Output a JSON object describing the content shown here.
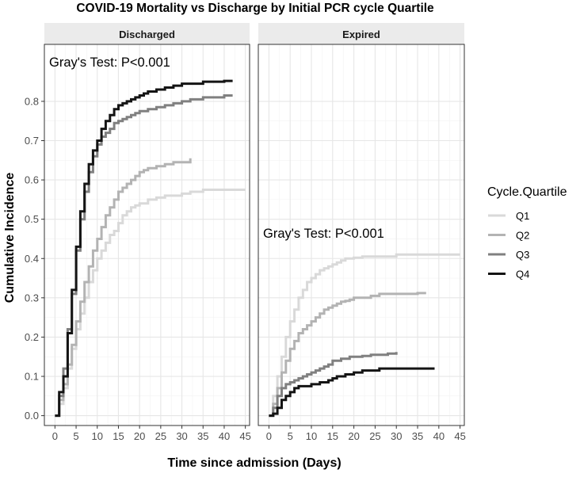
{
  "chart_data": {
    "type": "line",
    "subtype": "step",
    "title": "COVID-19 Mortality vs Discharge by Initial PCR cycle Quartile",
    "xlabel": "Time since admission (Days)",
    "ylabel": "Cumulative Incidence",
    "xlim": [
      -2.5,
      46
    ],
    "ylim": [
      -0.025,
      0.945
    ],
    "x_ticks": [
      0,
      5,
      10,
      15,
      20,
      25,
      30,
      35,
      40,
      45
    ],
    "y_ticks": [
      0.0,
      0.1,
      0.2,
      0.3,
      0.4,
      0.5,
      0.6,
      0.7,
      0.8
    ],
    "grid": true,
    "legend": {
      "title": "Cycle.Quartile",
      "placement": "right",
      "entries": [
        "Q1",
        "Q2",
        "Q3",
        "Q4"
      ]
    },
    "colors": {
      "Q1": "#d9d9d9",
      "Q2": "#b3b3b3",
      "Q3": "#808080",
      "Q4": "#141414"
    },
    "panels": [
      {
        "name": "Discharged",
        "annotation": "Gray's Test: P<0.001",
        "series": [
          {
            "name": "Q1",
            "x": [
              0,
              1,
              2,
              3,
              4,
              5,
              6,
              7,
              8,
              9,
              10,
              11,
              12,
              13,
              14,
              15,
              16,
              17,
              18,
              19,
              20,
              22,
              24,
              26,
              28,
              30,
              32,
              35,
              38,
              42,
              45
            ],
            "y": [
              0,
              0.03,
              0.07,
              0.12,
              0.17,
              0.22,
              0.26,
              0.3,
              0.34,
              0.37,
              0.4,
              0.42,
              0.44,
              0.46,
              0.47,
              0.49,
              0.51,
              0.52,
              0.53,
              0.535,
              0.54,
              0.55,
              0.555,
              0.56,
              0.56,
              0.565,
              0.57,
              0.575,
              0.575,
              0.575,
              0.575
            ]
          },
          {
            "name": "Q2",
            "x": [
              0,
              1,
              2,
              3,
              4,
              5,
              6,
              7,
              8,
              9,
              10,
              11,
              12,
              13,
              14,
              15,
              16,
              17,
              18,
              19,
              20,
              21,
              22,
              24,
              26,
              28,
              30,
              32
            ],
            "y": [
              0,
              0.04,
              0.08,
              0.13,
              0.18,
              0.24,
              0.29,
              0.34,
              0.38,
              0.42,
              0.45,
              0.48,
              0.51,
              0.53,
              0.55,
              0.57,
              0.58,
              0.59,
              0.6,
              0.61,
              0.62,
              0.625,
              0.63,
              0.635,
              0.64,
              0.645,
              0.645,
              0.655
            ]
          },
          {
            "name": "Q3",
            "x": [
              0,
              1,
              2,
              3,
              4,
              5,
              6,
              7,
              8,
              9,
              10,
              11,
              12,
              13,
              14,
              15,
              16,
              17,
              18,
              19,
              20,
              22,
              24,
              26,
              28,
              30,
              32,
              35,
              38,
              40,
              42
            ],
            "y": [
              0,
              0.05,
              0.12,
              0.22,
              0.31,
              0.42,
              0.5,
              0.57,
              0.62,
              0.66,
              0.69,
              0.71,
              0.72,
              0.73,
              0.745,
              0.75,
              0.755,
              0.76,
              0.765,
              0.77,
              0.775,
              0.78,
              0.785,
              0.79,
              0.795,
              0.8,
              0.805,
              0.81,
              0.81,
              0.815,
              0.815
            ]
          },
          {
            "name": "Q4",
            "x": [
              0,
              1,
              2,
              3,
              4,
              5,
              6,
              7,
              8,
              9,
              10,
              11,
              12,
              13,
              14,
              15,
              16,
              17,
              18,
              19,
              20,
              21,
              22,
              24,
              26,
              28,
              30,
              32,
              35,
              38,
              40,
              42
            ],
            "y": [
              0,
              0.06,
              0.1,
              0.21,
              0.32,
              0.43,
              0.52,
              0.59,
              0.64,
              0.675,
              0.7,
              0.73,
              0.75,
              0.765,
              0.78,
              0.79,
              0.795,
              0.8,
              0.805,
              0.81,
              0.815,
              0.82,
              0.825,
              0.83,
              0.835,
              0.84,
              0.845,
              0.845,
              0.85,
              0.85,
              0.852,
              0.852
            ]
          }
        ]
      },
      {
        "name": "Expired",
        "annotation": "Gray's Test: P<0.001",
        "series": [
          {
            "name": "Q1",
            "x": [
              0,
              1,
              2,
              3,
              4,
              5,
              6,
              7,
              8,
              9,
              10,
              11,
              12,
              13,
              14,
              15,
              16,
              17,
              18,
              19,
              20,
              22,
              24,
              26,
              28,
              30,
              32,
              35,
              38,
              42,
              45
            ],
            "y": [
              0,
              0.05,
              0.1,
              0.15,
              0.2,
              0.24,
              0.27,
              0.3,
              0.32,
              0.34,
              0.35,
              0.36,
              0.37,
              0.375,
              0.38,
              0.385,
              0.39,
              0.395,
              0.4,
              0.4,
              0.402,
              0.405,
              0.405,
              0.405,
              0.405,
              0.41,
              0.41,
              0.41,
              0.41,
              0.41,
              0.41
            ]
          },
          {
            "name": "Q2",
            "x": [
              0,
              1,
              2,
              3,
              4,
              5,
              6,
              7,
              8,
              9,
              10,
              11,
              12,
              13,
              14,
              15,
              16,
              17,
              18,
              19,
              20,
              22,
              24,
              26,
              28,
              30,
              32,
              35,
              37
            ],
            "y": [
              0,
              0.03,
              0.07,
              0.11,
              0.14,
              0.17,
              0.19,
              0.21,
              0.22,
              0.23,
              0.24,
              0.25,
              0.26,
              0.27,
              0.275,
              0.28,
              0.285,
              0.29,
              0.292,
              0.295,
              0.3,
              0.3,
              0.305,
              0.31,
              0.31,
              0.31,
              0.31,
              0.312,
              0.312
            ]
          },
          {
            "name": "Q3",
            "x": [
              0,
              1,
              2,
              3,
              4,
              5,
              6,
              7,
              8,
              9,
              10,
              11,
              12,
              13,
              14,
              15,
              16,
              17,
              18,
              19,
              20,
              22,
              24,
              26,
              28,
              30
            ],
            "y": [
              0,
              0.02,
              0.05,
              0.07,
              0.08,
              0.085,
              0.09,
              0.095,
              0.1,
              0.105,
              0.11,
              0.115,
              0.12,
              0.125,
              0.13,
              0.14,
              0.14,
              0.145,
              0.145,
              0.15,
              0.15,
              0.152,
              0.155,
              0.155,
              0.158,
              0.162
            ]
          },
          {
            "name": "Q4",
            "x": [
              0,
              1,
              2,
              3,
              4,
              5,
              6,
              7,
              8,
              10,
              12,
              14,
              15,
              16,
              17,
              18,
              20,
              22,
              24,
              26,
              28,
              30,
              32,
              35,
              39
            ],
            "y": [
              0,
              0.005,
              0.02,
              0.04,
              0.05,
              0.06,
              0.07,
              0.075,
              0.075,
              0.08,
              0.085,
              0.09,
              0.095,
              0.1,
              0.1,
              0.105,
              0.11,
              0.115,
              0.115,
              0.12,
              0.12,
              0.12,
              0.12,
              0.12,
              0.12
            ]
          }
        ]
      }
    ]
  }
}
